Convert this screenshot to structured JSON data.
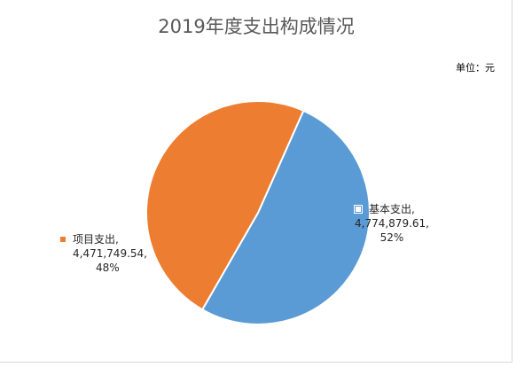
{
  "colors": {
    "jiben": "#5b9bd5",
    "xiangmu": "#ed7d31"
  },
  "chart_data": {
    "type": "pie",
    "title": "2019年度支出构成情况",
    "unit_label": "单位：元",
    "slices": [
      {
        "name": "基本支出",
        "value": 4774879.61,
        "value_text": "4,774,879.61",
        "percent_text": "52%"
      },
      {
        "name": "项目支出",
        "value": 4471749.54,
        "value_text": "4,471,749.54",
        "percent_text": "48%"
      }
    ],
    "legend": "none",
    "data_labels": "outside"
  }
}
